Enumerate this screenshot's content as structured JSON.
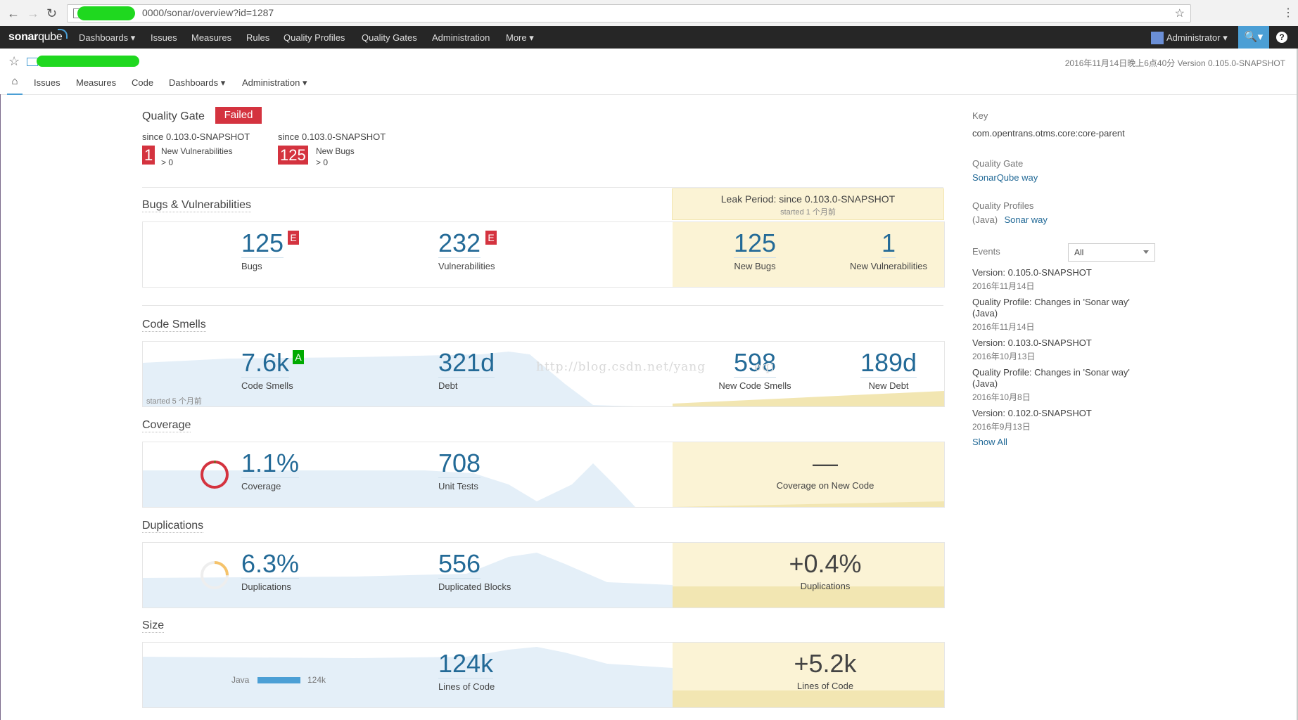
{
  "browser": {
    "url": "0000/sonar/overview?id=1287",
    "back_icon": "←",
    "forward_icon": "→",
    "reload_icon": "↻",
    "star_icon": "☆",
    "menu_icon": "⋮"
  },
  "topnav": {
    "logo_a": "sonar",
    "logo_b": "qube",
    "items": [
      "Dashboards ▾",
      "Issues",
      "Measures",
      "Rules",
      "Quality Profiles",
      "Quality Gates",
      "Administration",
      "More ▾"
    ],
    "admin": "Administrator ▾",
    "search_icon": "🔍▾",
    "help_icon": "?"
  },
  "project": {
    "star_icon": "☆",
    "meta": "2016年11月14日晚上6点40分   Version 0.105.0-SNAPSHOT",
    "home_icon": "⌂",
    "subnav": [
      "Issues",
      "Measures",
      "Code",
      "Dashboards ▾",
      "Administration ▾"
    ]
  },
  "quality_gate": {
    "title": "Quality Gate",
    "status": "Failed",
    "conditions": [
      {
        "since": "since 0.103.0-SNAPSHOT",
        "value": "1",
        "metric": "New Vulnerabilities",
        "threshold": "> 0"
      },
      {
        "since": "since 0.103.0-SNAPSHOT",
        "value": "125",
        "metric": "New Bugs",
        "threshold": "> 0"
      }
    ]
  },
  "bugs": {
    "title": "Bugs & Vulnerabilities",
    "leak_title": "Leak Period: since 0.103.0-SNAPSHOT",
    "leak_sub": "started 1 个月前",
    "bugs_value": "125",
    "bugs_rating": "E",
    "bugs_label": "Bugs",
    "vuln_value": "232",
    "vuln_rating": "E",
    "vuln_label": "Vulnerabilities",
    "new_bugs_value": "125",
    "new_bugs_label": "New Bugs",
    "new_vuln_value": "1",
    "new_vuln_label": "New Vulnerabilities"
  },
  "smells": {
    "title": "Code Smells",
    "smells_value": "7.6k",
    "smells_rating": "A",
    "smells_label": "Code Smells",
    "debt_value": "321d",
    "debt_label": "Debt",
    "new_smells_value": "598",
    "new_smells_label": "New Code Smells",
    "new_debt_value": "189d",
    "new_debt_label": "New Debt",
    "started": "started 5 个月前"
  },
  "coverage": {
    "title": "Coverage",
    "coverage_value": "1.1%",
    "coverage_label": "Coverage",
    "coverage_fraction": 0.011,
    "tests_value": "708",
    "tests_label": "Unit Tests",
    "new_value": "—",
    "new_label": "Coverage on New Code"
  },
  "duplications": {
    "title": "Duplications",
    "dup_value": "6.3%",
    "dup_label": "Duplications",
    "dup_fraction": 0.063,
    "blocks_value": "556",
    "blocks_label": "Duplicated Blocks",
    "new_value": "+0.4%",
    "new_label": "Duplications"
  },
  "size": {
    "title": "Size",
    "lang": "Java",
    "lang_value": "124k",
    "loc_value": "124k",
    "loc_label": "Lines of Code",
    "new_value": "+5.2k",
    "new_label": "Lines of Code"
  },
  "sidebar": {
    "key_label": "Key",
    "key_value": "com.opentrans.otms.core:core-parent",
    "qg_label": "Quality Gate",
    "qg_value": "SonarQube way",
    "qp_label": "Quality Profiles",
    "qp_lang": "(Java)",
    "qp_value": "Sonar way",
    "events_label": "Events",
    "events_filter": "All",
    "events": [
      {
        "title": "Version: 0.105.0-SNAPSHOT",
        "date": "2016年11月14日"
      },
      {
        "title": "Quality Profile: Changes in 'Sonar way' (Java)",
        "date": "2016年11月14日"
      },
      {
        "title": "Version: 0.103.0-SNAPSHOT",
        "date": "2016年10月13日"
      },
      {
        "title": "Quality Profile: Changes in 'Sonar way' (Java)",
        "date": "2016年10月8日"
      },
      {
        "title": "Version: 0.102.0-SNAPSHOT",
        "date": "2016年9月13日"
      }
    ],
    "show_all": "Show All"
  },
  "watermark": "http://blog.csdn.net/yang",
  "watermark_tail": "eqi",
  "colors": {
    "accent": "#236a97",
    "error": "#d4333f",
    "ok": "#00aa00",
    "leak": "#fbf3d5",
    "sparkline": "#e4eff8"
  }
}
